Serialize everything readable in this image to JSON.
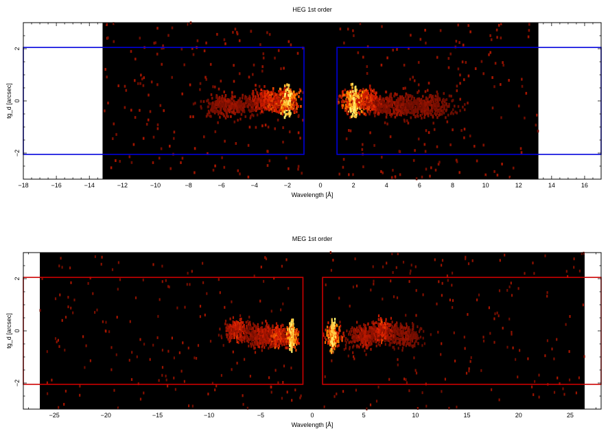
{
  "chart_data": [
    {
      "type": "heatmap",
      "title": "HEG 1st order",
      "xlabel": "Wavelength [Å]",
      "ylabel": "tg_d [arcsec]",
      "xlim": [
        -18,
        17
      ],
      "ylim": [
        -3,
        3
      ],
      "x_ticks": [
        -18,
        -16,
        -14,
        -12,
        -10,
        -8,
        -6,
        -4,
        -2,
        0,
        2,
        4,
        6,
        8,
        10,
        12,
        14,
        16
      ],
      "y_ticks": [
        -2,
        0,
        2
      ],
      "grid": false,
      "data_extent_x": [
        -13.2,
        13.2
      ],
      "colormap": "heat (black-red-orange-yellow)",
      "box_color": "#0000dd",
      "boxes": [
        {
          "name": "minus order",
          "x": [
            -18,
            -1.0
          ],
          "y": [
            -2.05,
            2.05
          ]
        },
        {
          "name": "plus order",
          "x": [
            1.0,
            17
          ],
          "y": [
            -2.05,
            2.05
          ]
        }
      ],
      "density_peaks": [
        {
          "x": -2.0,
          "y": 0,
          "intensity": 1.0
        },
        {
          "x": 2.0,
          "y": 0,
          "intensity": 1.0
        },
        {
          "x": -3.0,
          "y": 0,
          "intensity": 0.55
        },
        {
          "x": 2.8,
          "y": 0,
          "intensity": 0.55
        },
        {
          "x": -5.5,
          "y": -0.2,
          "intensity": 0.25
        },
        {
          "x": 4.5,
          "y": -0.2,
          "intensity": 0.25
        },
        {
          "x": 6.5,
          "y": -0.2,
          "intensity": 0.2
        }
      ]
    },
    {
      "type": "heatmap",
      "title": "MEG 1st order",
      "xlabel": "Wavelength [Å]",
      "ylabel": "tg_d [arcsec]",
      "xlim": [
        -28,
        28
      ],
      "ylim": [
        -3,
        3
      ],
      "x_ticks": [
        -25,
        -20,
        -15,
        -10,
        -5,
        0,
        5,
        10,
        15,
        20,
        25
      ],
      "y_ticks": [
        -2,
        0,
        2
      ],
      "grid": false,
      "data_extent_x": [
        -26.4,
        26.4
      ],
      "colormap": "heat (black-red-orange-yellow)",
      "box_color": "#cc0000",
      "boxes": [
        {
          "name": "minus order",
          "x": [
            -28,
            -0.9
          ],
          "y": [
            -2.05,
            2.05
          ]
        },
        {
          "name": "plus order",
          "x": [
            1.0,
            28
          ],
          "y": [
            -2.05,
            2.05
          ]
        }
      ],
      "density_peaks": [
        {
          "x": -2.0,
          "y": -0.2,
          "intensity": 1.0
        },
        {
          "x": 2.0,
          "y": -0.2,
          "intensity": 1.0
        },
        {
          "x": -3.5,
          "y": -0.2,
          "intensity": 0.6
        },
        {
          "x": -7.2,
          "y": 0,
          "intensity": 0.5
        },
        {
          "x": 6.8,
          "y": 0,
          "intensity": 0.5
        },
        {
          "x": -5.0,
          "y": -0.2,
          "intensity": 0.35
        },
        {
          "x": 5.0,
          "y": -0.2,
          "intensity": 0.35
        },
        {
          "x": 9.0,
          "y": -0.2,
          "intensity": 0.2
        }
      ]
    }
  ]
}
